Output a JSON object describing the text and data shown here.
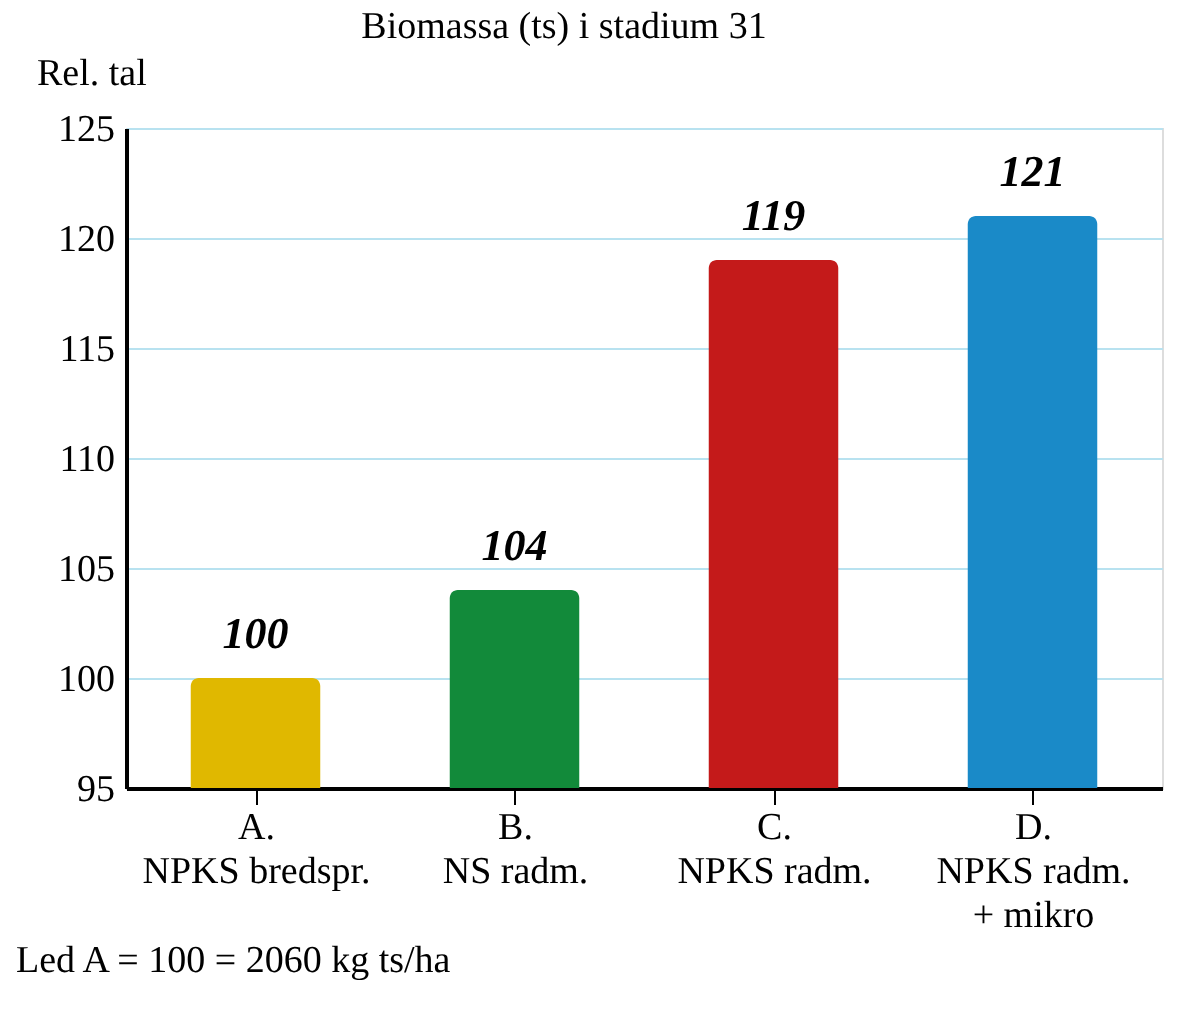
{
  "chart_data": {
    "type": "bar",
    "title": "Biomassa (ts) i stadium 31",
    "ylabel": "Rel. tal",
    "categories": [
      "A.\nNPKS bredspr.",
      "B.\nNS radm.",
      "C.\nNPKS radm.",
      "D.\nNPKS radm.\n+ mikro"
    ],
    "values": [
      100,
      104,
      119,
      121
    ],
    "colors": [
      "#e0b800",
      "#128a3a",
      "#c41a1a",
      "#1a8ac8"
    ],
    "ylim": [
      95,
      125
    ],
    "yticks": [
      95,
      100,
      105,
      110,
      115,
      120,
      125
    ],
    "grid": "y",
    "data_labels": true,
    "annotations": [
      "Led A = 100 = 2060 kg ts/ha"
    ]
  }
}
